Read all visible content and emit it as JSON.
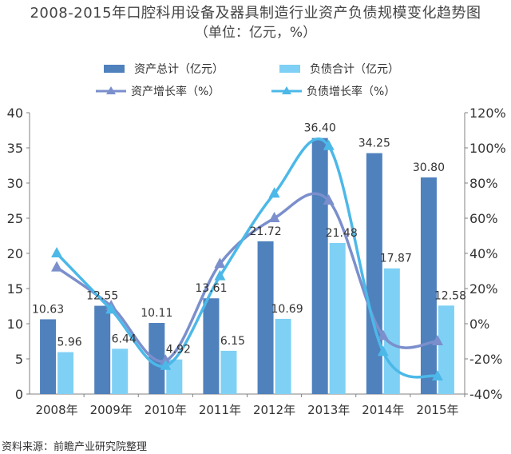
{
  "chart_data": {
    "type": "bar",
    "title": "2008-2015年口腔科用设备及器具制造行业资产负债规模变化趋势图",
    "subtitle": "（单位：亿元，%）",
    "categories": [
      "2008年",
      "2009年",
      "2010年",
      "2011年",
      "2012年",
      "2013年",
      "2014年",
      "2015年"
    ],
    "series": [
      {
        "name": "资产总计（亿元）",
        "kind": "bar",
        "axis": "left",
        "color": "#4f81bd",
        "values": [
          10.63,
          12.55,
          10.11,
          13.61,
          21.72,
          36.4,
          34.25,
          30.8
        ],
        "labels": [
          "10.63",
          "12.55",
          "10.11",
          "13.61",
          "21.72",
          "36.40",
          "34.25",
          "30.80"
        ]
      },
      {
        "name": "负债合计（亿元）",
        "kind": "bar",
        "axis": "left",
        "color": "#7fd0f5",
        "values": [
          5.96,
          6.44,
          4.92,
          6.15,
          10.69,
          21.48,
          17.87,
          12.58
        ],
        "labels": [
          "5.96",
          "6.44",
          "4.92",
          "6.15",
          "10.69",
          "21.48",
          "17.87",
          "12.58"
        ]
      },
      {
        "name": "资产增长率（%）",
        "kind": "line",
        "axis": "right",
        "color": "#7b8fcc",
        "values": [
          32,
          10,
          -21,
          34,
          60,
          70,
          -7,
          -10
        ]
      },
      {
        "name": "负债增长率（%）",
        "kind": "line",
        "axis": "right",
        "color": "#4cb8e8",
        "values": [
          40,
          8,
          -24,
          27,
          74,
          101,
          -16,
          -30
        ]
      }
    ],
    "y_left": {
      "min": 0,
      "max": 40,
      "ticks": [
        "0",
        "5",
        "10",
        "15",
        "20",
        "25",
        "30",
        "35",
        "40"
      ]
    },
    "y_right": {
      "min": -40,
      "max": 120,
      "ticks": [
        "-40%",
        "-20%",
        "0%",
        "20%",
        "40%",
        "60%",
        "80%",
        "100%",
        "120%"
      ]
    },
    "grid": false,
    "legend": "top"
  },
  "source": "资料来源：前瞻产业研究院整理"
}
